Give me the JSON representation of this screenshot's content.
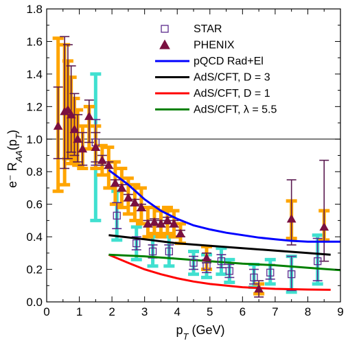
{
  "chart_data": {
    "type": "scatter",
    "title": "",
    "xlabel": "p_T (GeV)",
    "ylabel": "e⁻ R_AA(p_T)",
    "xlim": [
      0,
      9
    ],
    "ylim": [
      0,
      1.8
    ],
    "x_ticks": [
      "0",
      "1",
      "2",
      "3",
      "4",
      "5",
      "6",
      "7",
      "8",
      "9"
    ],
    "y_ticks": [
      "0.0",
      "0.2",
      "0.4",
      "0.6",
      "0.8",
      "1.0",
      "1.2",
      "1.4",
      "1.6",
      "1.8"
    ],
    "reference_line": 1.0,
    "legend": {
      "position": "top-right",
      "items": [
        "STAR",
        "PHENIX",
        "pQCD Rad+El",
        "AdS/CFT, D = 3",
        "AdS/CFT, D = 1",
        "AdS/CFT, λ = 5.5"
      ]
    },
    "colors": {
      "star_marker": "#5a2a8c",
      "star_stat": "#5a2a8c",
      "star_sys": "#40e0d0",
      "phenix_marker": "#7a1040",
      "phenix_stat": "#5a1a50",
      "phenix_sys": "#ffa500",
      "pqcd": "#0000ff",
      "ads_d3": "#000000",
      "ads_d1": "#ff0000",
      "ads_lambda": "#008000"
    },
    "series": [
      {
        "name": "STAR",
        "marker": "open-square",
        "points": [
          {
            "x": 1.5,
            "y": 0.98,
            "stat_lo": 0.84,
            "stat_hi": 1.12,
            "sys_lo": 0.5,
            "sys_hi": 1.4
          },
          {
            "x": 2.15,
            "y": 0.53,
            "stat_lo": 0.45,
            "stat_hi": 0.61,
            "sys_lo": 0.38,
            "sys_hi": 0.68
          },
          {
            "x": 2.75,
            "y": 0.36,
            "stat_lo": 0.32,
            "stat_hi": 0.4,
            "sys_lo": 0.26,
            "sys_hi": 0.46
          },
          {
            "x": 3.25,
            "y": 0.31,
            "stat_lo": 0.27,
            "stat_hi": 0.35,
            "sys_lo": 0.22,
            "sys_hi": 0.4
          },
          {
            "x": 3.75,
            "y": 0.31,
            "stat_lo": 0.27,
            "stat_hi": 0.35,
            "sys_lo": 0.22,
            "sys_hi": 0.4
          },
          {
            "x": 4.5,
            "y": 0.24,
            "stat_lo": 0.2,
            "stat_hi": 0.28,
            "sys_lo": 0.17,
            "sys_hi": 0.31
          },
          {
            "x": 4.9,
            "y": 0.22,
            "stat_lo": 0.18,
            "stat_hi": 0.26,
            "sys_lo": 0.15,
            "sys_hi": 0.29
          },
          {
            "x": 5.35,
            "y": 0.25,
            "stat_lo": 0.21,
            "stat_hi": 0.29,
            "sys_lo": 0.17,
            "sys_hi": 0.33
          },
          {
            "x": 5.6,
            "y": 0.19,
            "stat_lo": 0.15,
            "stat_hi": 0.23,
            "sys_lo": 0.12,
            "sys_hi": 0.26
          },
          {
            "x": 6.35,
            "y": 0.15,
            "stat_lo": 0.11,
            "stat_hi": 0.2,
            "sys_lo": 0.09,
            "sys_hi": 0.23
          },
          {
            "x": 6.85,
            "y": 0.18,
            "stat_lo": 0.14,
            "stat_hi": 0.23,
            "sys_lo": 0.11,
            "sys_hi": 0.26
          },
          {
            "x": 7.5,
            "y": 0.17,
            "stat_lo": 0.07,
            "stat_hi": 0.28,
            "sys_lo": 0.06,
            "sys_hi": 0.28
          },
          {
            "x": 8.3,
            "y": 0.25,
            "stat_lo": 0.13,
            "stat_hi": 0.39,
            "sys_lo": 0.11,
            "sys_hi": 0.41
          }
        ]
      },
      {
        "name": "PHENIX",
        "marker": "filled-triangle",
        "points": [
          {
            "x": 0.35,
            "y": 1.08,
            "stat_lo": 0.88,
            "stat_hi": 1.32,
            "sys_lo": 0.68,
            "sys_hi": 1.62
          },
          {
            "x": 0.55,
            "y": 1.17,
            "stat_lo": 0.82,
            "stat_hi": 1.63,
            "sys_lo": 0.72,
            "sys_hi": 1.58
          },
          {
            "x": 0.65,
            "y": 1.18,
            "stat_lo": 0.88,
            "stat_hi": 1.58,
            "sys_lo": 0.88,
            "sys_hi": 1.48
          },
          {
            "x": 0.75,
            "y": 1.15,
            "stat_lo": 0.92,
            "stat_hi": 1.45,
            "sys_lo": 0.85,
            "sys_hi": 1.38
          },
          {
            "x": 0.85,
            "y": 1.06,
            "stat_lo": 0.9,
            "stat_hi": 1.28,
            "sys_lo": 0.85,
            "sys_hi": 1.25
          },
          {
            "x": 0.95,
            "y": 1.0,
            "stat_lo": 0.86,
            "stat_hi": 1.15,
            "sys_lo": 0.84,
            "sys_hi": 1.18
          },
          {
            "x": 1.1,
            "y": 0.94,
            "stat_lo": 0.84,
            "stat_hi": 1.04,
            "sys_lo": 0.82,
            "sys_hi": 1.08
          },
          {
            "x": 1.3,
            "y": 1.14,
            "stat_lo": 0.98,
            "stat_hi": 1.24,
            "sys_lo": 0.94,
            "sys_hi": 1.2
          },
          {
            "x": 1.5,
            "y": 0.95,
            "stat_lo": 0.86,
            "stat_hi": 1.04,
            "sys_lo": 0.82,
            "sys_hi": 1.08
          },
          {
            "x": 1.7,
            "y": 0.87,
            "stat_lo": 0.84,
            "stat_hi": 0.9,
            "sys_lo": 0.78,
            "sys_hi": 0.96
          },
          {
            "x": 1.9,
            "y": 0.84,
            "stat_lo": 0.82,
            "stat_hi": 0.86,
            "sys_lo": 0.7,
            "sys_hi": 0.95
          },
          {
            "x": 2.1,
            "y": 0.73,
            "stat_lo": 0.71,
            "stat_hi": 0.75,
            "sys_lo": 0.6,
            "sys_hi": 0.86
          },
          {
            "x": 2.3,
            "y": 0.7,
            "stat_lo": 0.68,
            "stat_hi": 0.72,
            "sys_lo": 0.58,
            "sys_hi": 0.82
          },
          {
            "x": 2.5,
            "y": 0.64,
            "stat_lo": 0.62,
            "stat_hi": 0.66,
            "sys_lo": 0.54,
            "sys_hi": 0.76
          },
          {
            "x": 2.7,
            "y": 0.61,
            "stat_lo": 0.59,
            "stat_hi": 0.63,
            "sys_lo": 0.5,
            "sys_hi": 0.72
          },
          {
            "x": 2.9,
            "y": 0.58,
            "stat_lo": 0.56,
            "stat_hi": 0.6,
            "sys_lo": 0.48,
            "sys_hi": 0.7
          },
          {
            "x": 3.1,
            "y": 0.48,
            "stat_lo": 0.46,
            "stat_hi": 0.5,
            "sys_lo": 0.4,
            "sys_hi": 0.58
          },
          {
            "x": 3.3,
            "y": 0.49,
            "stat_lo": 0.47,
            "stat_hi": 0.51,
            "sys_lo": 0.42,
            "sys_hi": 0.58
          },
          {
            "x": 3.5,
            "y": 0.48,
            "stat_lo": 0.46,
            "stat_hi": 0.5,
            "sys_lo": 0.4,
            "sys_hi": 0.56
          },
          {
            "x": 3.7,
            "y": 0.5,
            "stat_lo": 0.48,
            "stat_hi": 0.52,
            "sys_lo": 0.42,
            "sys_hi": 0.58
          },
          {
            "x": 3.9,
            "y": 0.48,
            "stat_lo": 0.46,
            "stat_hi": 0.5,
            "sys_lo": 0.4,
            "sys_hi": 0.56
          },
          {
            "x": 4.1,
            "y": 0.42,
            "stat_lo": 0.4,
            "stat_hi": 0.44,
            "sys_lo": 0.36,
            "sys_hi": 0.48
          },
          {
            "x": 4.9,
            "y": 0.27,
            "stat_lo": 0.24,
            "stat_hi": 0.3,
            "sys_lo": 0.2,
            "sys_hi": 0.34
          },
          {
            "x": 6.5,
            "y": 0.08,
            "stat_lo": 0.03,
            "stat_hi": 0.13,
            "sys_lo": 0.05,
            "sys_hi": 0.11
          },
          {
            "x": 7.5,
            "y": 0.51,
            "stat_lo": 0.35,
            "stat_hi": 0.75,
            "sys_lo": 0.39,
            "sys_hi": 0.62
          },
          {
            "x": 8.5,
            "y": 0.46,
            "stat_lo": 0.25,
            "stat_hi": 0.87,
            "sys_lo": 0.38,
            "sys_hi": 0.56
          }
        ]
      },
      {
        "name": "pQCD Rad+El",
        "line": true,
        "x": [
          1.9,
          2.5,
          3.0,
          3.5,
          4.0,
          4.5,
          5.0,
          5.5,
          6.0,
          6.5,
          7.0,
          7.5,
          8.0,
          8.5,
          9.0
        ],
        "y": [
          0.81,
          0.72,
          0.63,
          0.56,
          0.51,
          0.47,
          0.445,
          0.425,
          0.41,
          0.395,
          0.385,
          0.375,
          0.37,
          0.37,
          0.37
        ]
      },
      {
        "name": "AdS/CFT, D = 3",
        "line": true,
        "x": [
          1.9,
          3.0,
          4.0,
          5.0,
          6.0,
          7.0,
          8.0,
          8.7
        ],
        "y": [
          0.41,
          0.385,
          0.36,
          0.345,
          0.33,
          0.315,
          0.3,
          0.29
        ]
      },
      {
        "name": "AdS/CFT, D = 1",
        "line": true,
        "x": [
          1.9,
          2.5,
          3.0,
          3.5,
          4.0,
          4.5,
          5.0,
          5.5,
          6.0,
          6.5,
          7.0,
          7.5,
          8.0,
          8.7
        ],
        "y": [
          0.29,
          0.24,
          0.2,
          0.17,
          0.145,
          0.125,
          0.11,
          0.1,
          0.09,
          0.085,
          0.08,
          0.078,
          0.076,
          0.074
        ]
      },
      {
        "name": "AdS/CFT, λ = 5.5",
        "line": true,
        "x": [
          1.9,
          3.0,
          4.0,
          5.0,
          6.0,
          7.0,
          8.0,
          9.0
        ],
        "y": [
          0.29,
          0.28,
          0.265,
          0.25,
          0.235,
          0.225,
          0.21,
          0.195
        ]
      }
    ]
  }
}
